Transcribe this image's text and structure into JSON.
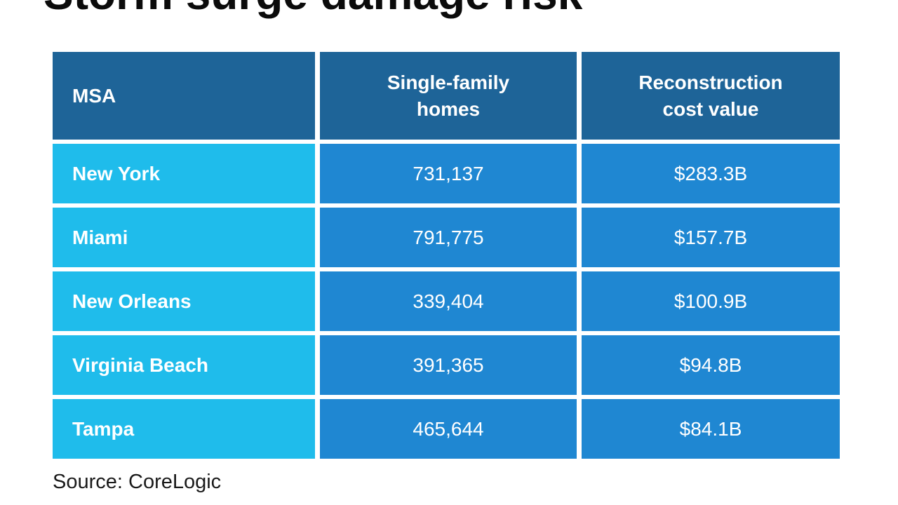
{
  "title": "Storm surge damage risk",
  "source": "Source: CoreLogic",
  "colors": {
    "header_bg": "#1E6498",
    "row_label_bg": "#1FBCEB",
    "value_cell_bg": "#1F87D2",
    "text_light": "#FFFFFF",
    "title_text": "#0B0B0B"
  },
  "chart_data": {
    "type": "table",
    "title": "Storm surge damage risk",
    "columns": [
      "MSA",
      "Single-family homes",
      "Reconstruction cost value"
    ],
    "rows": [
      [
        "New York",
        "731,137",
        "$283.3B"
      ],
      [
        "Miami",
        "791,775",
        "$157.7B"
      ],
      [
        "New Orleans",
        "339,404",
        "$100.9B"
      ],
      [
        "Virginia Beach",
        "391,365",
        "$94.8B"
      ],
      [
        "Tampa",
        "465,644",
        "$84.1B"
      ]
    ],
    "numeric": {
      "single_family_homes": [
        731137,
        791775,
        339404,
        391365,
        465644
      ],
      "reconstruction_cost_value_billions_usd": [
        283.3,
        157.7,
        100.9,
        94.8,
        84.1
      ]
    },
    "source": "Source: CoreLogic"
  },
  "table": {
    "headers": {
      "msa": "MSA",
      "homes": "Single-family homes",
      "cost": "Reconstruction cost value"
    },
    "rows": [
      {
        "msa": "New York",
        "homes": "731,137",
        "cost": "$283.3B"
      },
      {
        "msa": "Miami",
        "homes": "791,775",
        "cost": "$157.7B"
      },
      {
        "msa": "New Orleans",
        "homes": "339,404",
        "cost": "$100.9B"
      },
      {
        "msa": "Virginia Beach",
        "homes": "391,365",
        "cost": "$94.8B"
      },
      {
        "msa": "Tampa",
        "homes": "465,644",
        "cost": "$84.1B"
      }
    ]
  }
}
